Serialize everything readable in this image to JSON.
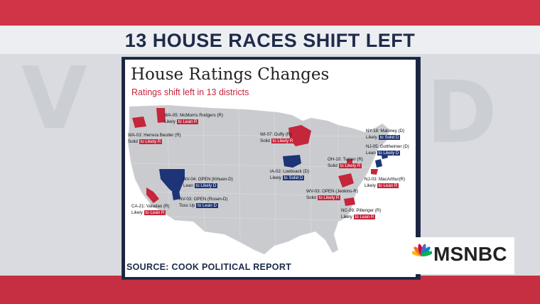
{
  "headline": "13 HOUSE RACES SHIFT LEFT",
  "graphic": {
    "title": "House Ratings Changes",
    "subtitle": "Ratings shift left in 13 districts",
    "source": "SOURCE: COOK POLITICAL REPORT"
  },
  "districts": [
    {
      "district": "WA-05: McMorris Rodgers (R)",
      "from": "Likely",
      "to": "to Lean R",
      "color": "red"
    },
    {
      "district": "WA-03: Herrera Beutler (R)",
      "from": "Solid",
      "to": "to Likely R",
      "color": "red"
    },
    {
      "district": "WI-07: Duffy (R)",
      "from": "Solid",
      "to": "to Likely R",
      "color": "red"
    },
    {
      "district": "NY-18: Maloney (D)",
      "from": "Likely",
      "to": "to Solid D",
      "color": "blue"
    },
    {
      "district": "NJ-05: Gottheimer (D)",
      "from": "Lean",
      "to": "to Likely D",
      "color": "blue"
    },
    {
      "district": "OH-10: Turner (R)",
      "from": "Solid",
      "to": "to Likely R",
      "color": "red"
    },
    {
      "district": "IA-02: Loebsack (D)",
      "from": "Likely",
      "to": "to Solid D",
      "color": "blue"
    },
    {
      "district": "NV-04: OPEN (Kihuen-D)",
      "from": "Lean",
      "to": "to Likely D",
      "color": "blue"
    },
    {
      "district": "NV-03: OPEN (Rosen-D)",
      "from": "Toss Up",
      "to": "to Lean D",
      "color": "blue"
    },
    {
      "district": "NJ-03: MacArthur(R)",
      "from": "Likely",
      "to": "to Lean R",
      "color": "red"
    },
    {
      "district": "WV-03: OPEN (Jenkins-R)",
      "from": "Solid",
      "to": "to Likely R",
      "color": "red"
    },
    {
      "district": "CA-21: Valadao (R)",
      "from": "Likely",
      "to": "to Lean R",
      "color": "red"
    },
    {
      "district": "NC-09: Pittenger (R)",
      "from": "Likely",
      "to": "to Lean R",
      "color": "red"
    }
  ],
  "colors": {
    "republican": "#c4263c",
    "democrat": "#1d3577",
    "map": "#c9cbcf"
  },
  "logo": {
    "text": "MSNBC",
    "icon": "peacock-icon"
  }
}
